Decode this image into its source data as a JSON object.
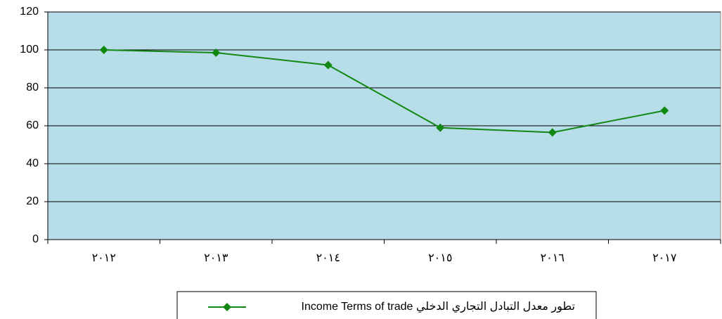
{
  "chart_data": {
    "type": "line",
    "categories": [
      "٢٠١٢",
      "٢٠١٣",
      "٢٠١٤",
      "٢٠١٥",
      "٢٠١٦",
      "٢٠١٧"
    ],
    "series": [
      {
        "name": "تطور معدل التبادل التجاري الدخلي  Income Terms of trade",
        "color": "#118811",
        "values": [
          100,
          98.5,
          92,
          59,
          56.5,
          68
        ]
      }
    ],
    "ylim": [
      0,
      120
    ],
    "yticks": [
      0,
      20,
      40,
      60,
      80,
      100,
      120
    ],
    "grid": true,
    "legend": "bottom"
  }
}
